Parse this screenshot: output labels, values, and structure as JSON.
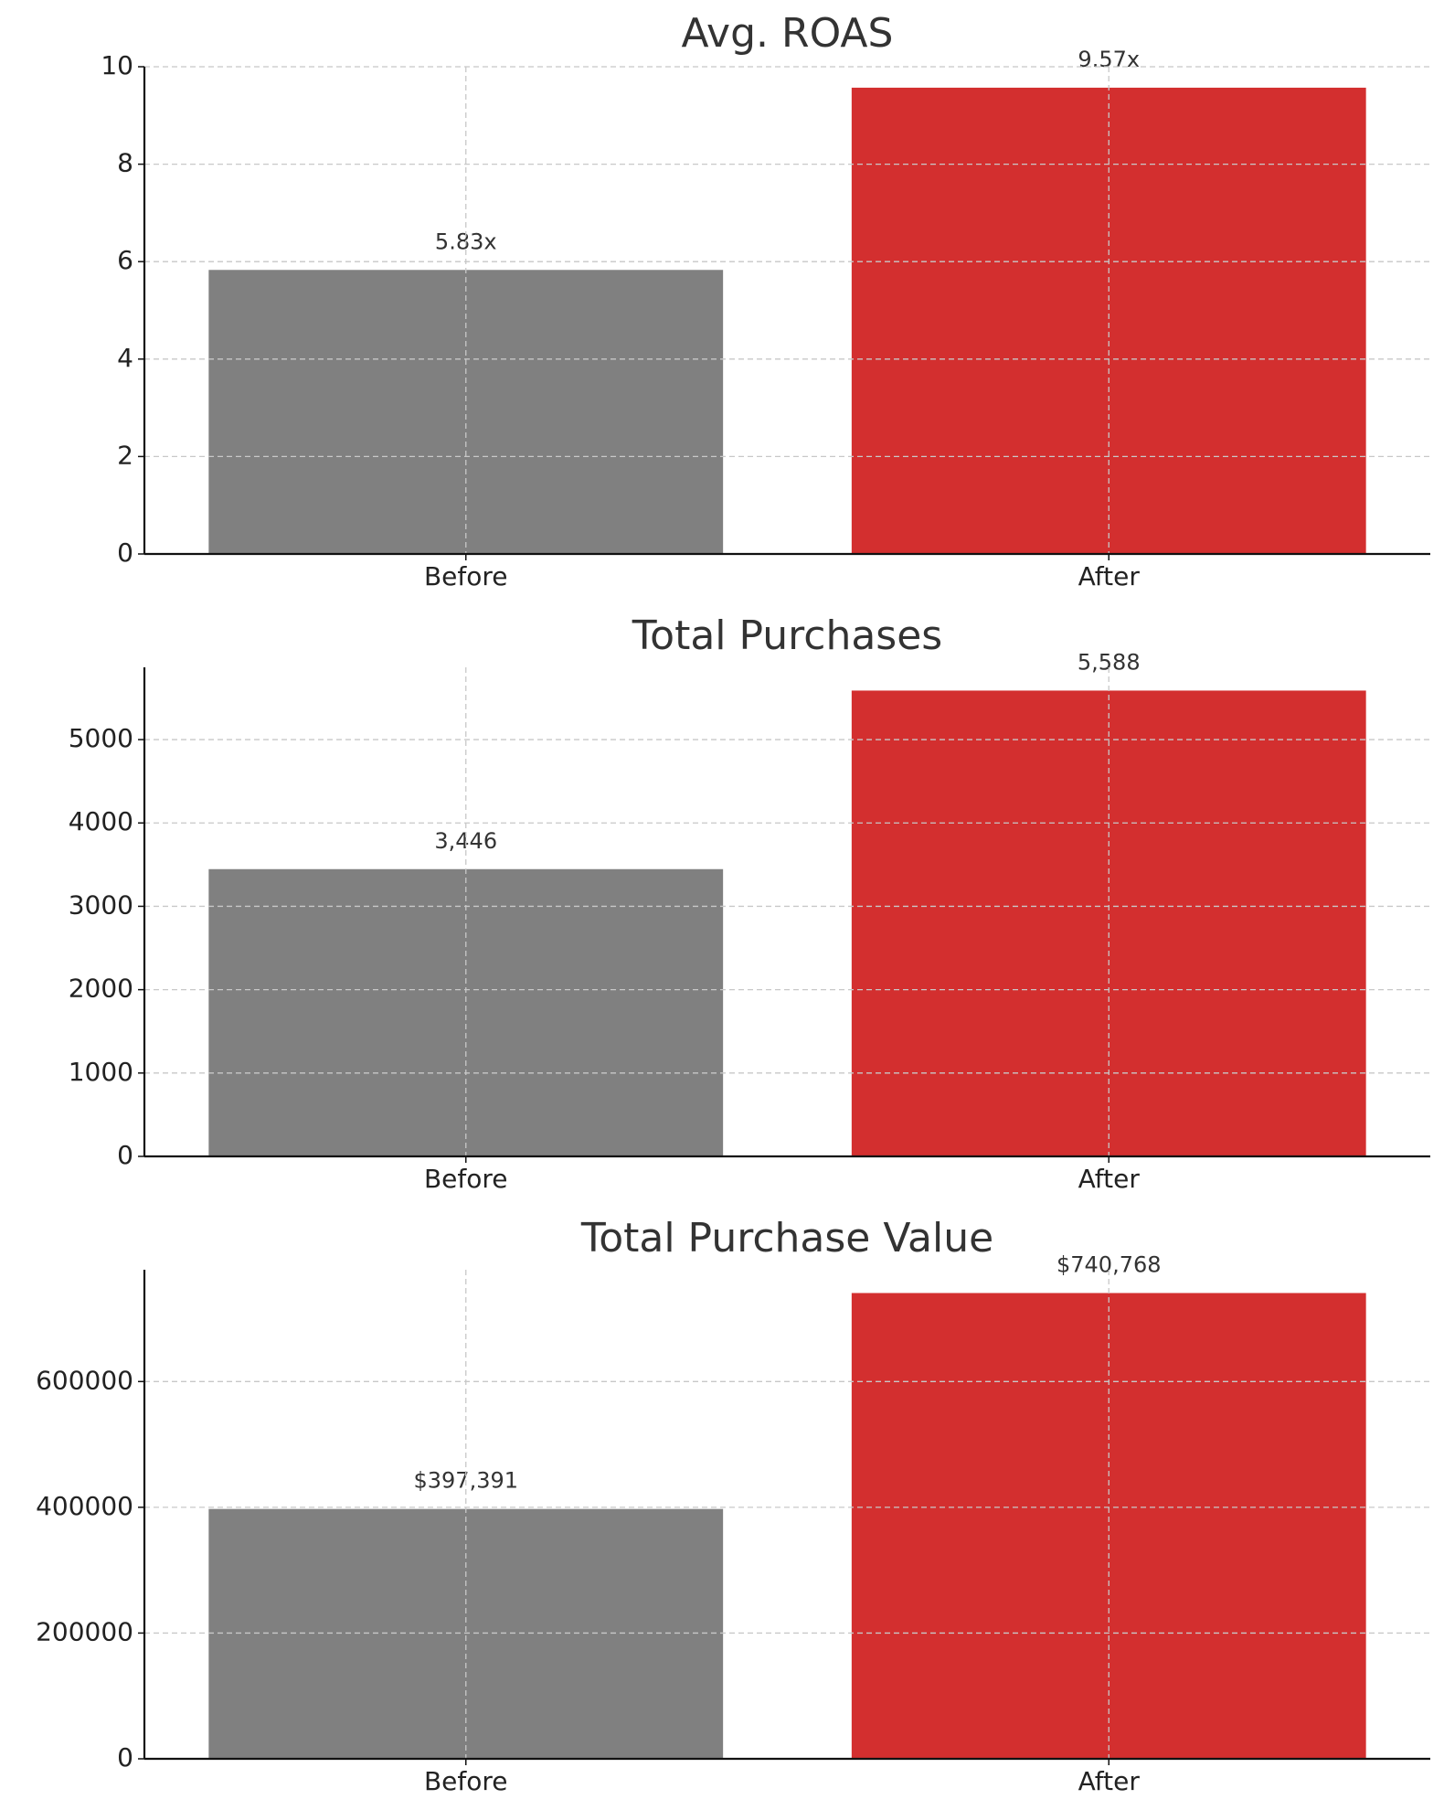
{
  "chart_data": [
    {
      "type": "bar",
      "title": "Avg. ROAS",
      "categories": [
        "Before",
        "After"
      ],
      "values": [
        5.83,
        9.57
      ],
      "value_labels": [
        "5.83x",
        "9.57x"
      ],
      "colors": [
        "#808080",
        "#d32f2f"
      ],
      "ylim": [
        0,
        10
      ],
      "yticks": [
        0,
        2,
        4,
        6,
        8,
        10
      ],
      "grid": true
    },
    {
      "type": "bar",
      "title": "Total Purchases",
      "categories": [
        "Before",
        "After"
      ],
      "values": [
        3446,
        5588
      ],
      "value_labels": [
        "3,446",
        "5,588"
      ],
      "colors": [
        "#808080",
        "#d32f2f"
      ],
      "ylim": [
        0,
        5867
      ],
      "yticks": [
        0,
        1000,
        2000,
        3000,
        4000,
        5000
      ],
      "grid": true
    },
    {
      "type": "bar",
      "title": "Total Purchase Value",
      "categories": [
        "Before",
        "After"
      ],
      "values": [
        397391,
        740768
      ],
      "value_labels": [
        "$397,391",
        "$740,768"
      ],
      "colors": [
        "#808080",
        "#d32f2f"
      ],
      "ylim": [
        0,
        777806
      ],
      "yticks": [
        0,
        200000,
        400000,
        600000
      ],
      "grid": true
    }
  ]
}
